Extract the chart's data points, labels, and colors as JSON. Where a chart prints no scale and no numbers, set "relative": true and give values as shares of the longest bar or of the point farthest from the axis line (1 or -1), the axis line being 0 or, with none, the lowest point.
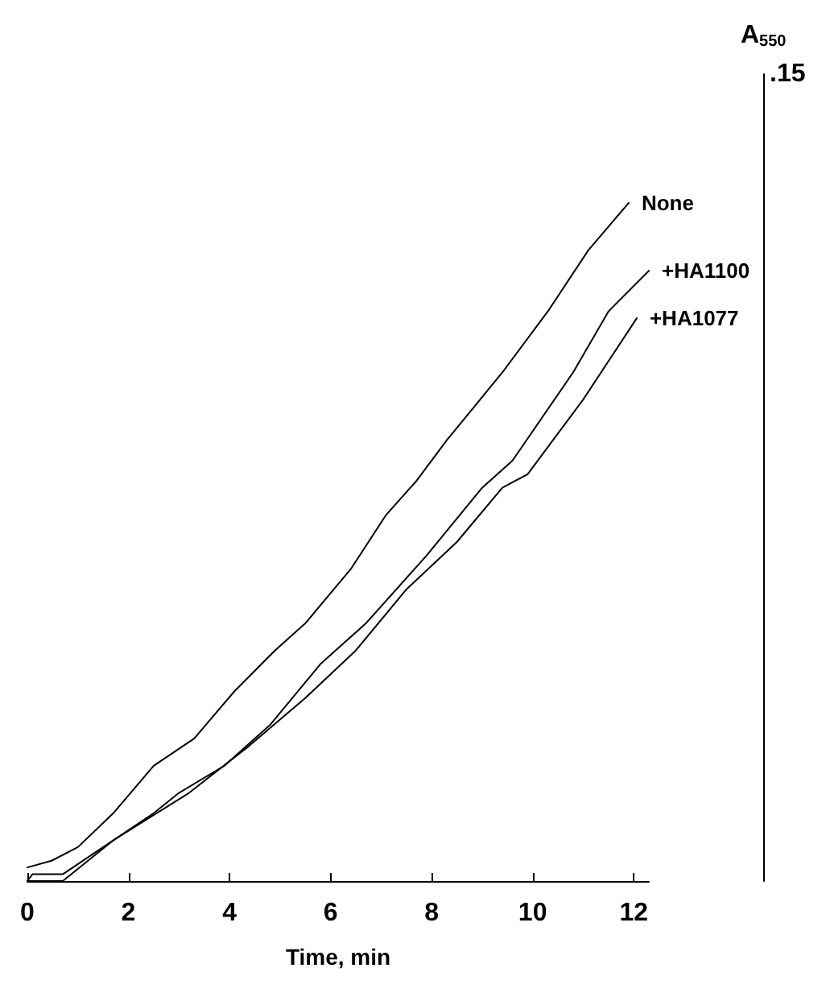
{
  "chart_data": {
    "type": "line",
    "xlabel": "Time, min",
    "relative": true,
    "annotations": [
      "A$_{550}$",
      ".15"
    ],
    "xlim": [
      0,
      12.3
    ],
    "xticks": [
      0,
      2,
      4,
      6,
      8,
      10,
      12
    ],
    "grid": false,
    "legend": false,
    "marker": "none",
    "line_style": "solid",
    "series": [
      {
        "name": "None",
        "color": "#000000",
        "x": [
          0,
          0.48,
          1.0,
          1.7,
          2.5,
          3.3,
          4.1,
          4.9,
          5.5,
          6.4,
          7.1,
          7.7,
          8.3,
          9.4,
          10.3,
          11.1,
          11.9
        ],
        "values": [
          0.02,
          0.03,
          0.05,
          0.1,
          0.17,
          0.21,
          0.28,
          0.34,
          0.38,
          0.46,
          0.54,
          0.59,
          0.65,
          0.75,
          0.84,
          0.93,
          1
        ]
      },
      {
        "name": "+HA1100",
        "color": "#000000",
        "x": [
          0,
          0.1,
          0.7,
          1.5,
          2.5,
          3.0,
          3.9,
          4.8,
          5.8,
          6.7,
          7.9,
          9.0,
          9.6,
          10.8,
          11.5,
          12.3
        ],
        "values": [
          0,
          0.01,
          0.01,
          0.05,
          0.1,
          0.13,
          0.17,
          0.23,
          0.32,
          0.38,
          0.48,
          0.58,
          0.62,
          0.75,
          0.84,
          0.9
        ]
      },
      {
        "name": "+HA1077",
        "color": "#000000",
        "x": [
          0,
          0.7,
          1.7,
          3.2,
          4.4,
          5.5,
          6.5,
          7.5,
          8.5,
          9.4,
          9.9,
          11.0,
          12.06
        ],
        "values": [
          0,
          0,
          0.06,
          0.13,
          0.2,
          0.27,
          0.34,
          0.43,
          0.5,
          0.58,
          0.6,
          0.71,
          0.83
        ]
      }
    ]
  }
}
